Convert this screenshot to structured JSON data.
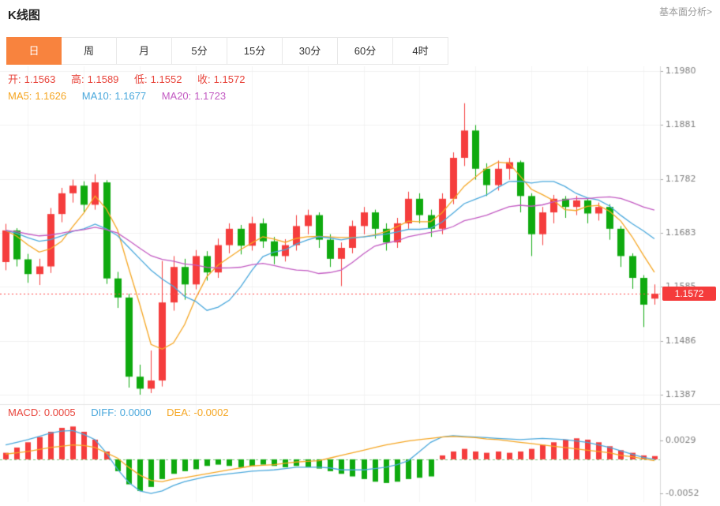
{
  "header": {
    "title": "K线图",
    "link": "基本面分析>"
  },
  "tabs": {
    "items": [
      {
        "key": "day",
        "label": "日",
        "active": true
      },
      {
        "key": "week",
        "label": "周",
        "active": false
      },
      {
        "key": "month",
        "label": "月",
        "active": false
      },
      {
        "key": "min5",
        "label": "5分",
        "active": false
      },
      {
        "key": "min15",
        "label": "15分",
        "active": false
      },
      {
        "key": "min30",
        "label": "30分",
        "active": false
      },
      {
        "key": "min60",
        "label": "60分",
        "active": false
      },
      {
        "key": "hour4",
        "label": "4时",
        "active": false
      }
    ]
  },
  "ohlc": {
    "open_label": "开:",
    "open": "1.1563",
    "high_label": "高:",
    "high": "1.1589",
    "low_label": "低:",
    "low": "1.1552",
    "close_label": "收:",
    "close": "1.1572"
  },
  "ma": {
    "ma5_label": "MA5:",
    "ma5": "1.1626",
    "ma10_label": "MA10:",
    "ma10": "1.1677",
    "ma20_label": "MA20:",
    "ma20": "1.1723"
  },
  "macd_legend": {
    "macd_label": "MACD:",
    "macd": "0.0005",
    "diff_label": "DIFF:",
    "diff": "0.0000",
    "dea_label": "DEA:",
    "dea": "-0.0002"
  },
  "price_tag": "1.1572",
  "colors": {
    "up": "#f53d3d",
    "down": "#0faa0f",
    "ma5": "#f5a623",
    "ma10": "#4aa8dc",
    "ma20": "#c25ac2",
    "diff": "#4aa8dc",
    "dea": "#f5a623",
    "accent_tab": "#f8833e",
    "price_line": "#ff4a4a",
    "macd_zero": "#7cc47c"
  },
  "chart_data": {
    "type": "candlestick",
    "title": "K线图",
    "y_ticks": [
      "1.1980",
      "1.1881",
      "1.1782",
      "1.1683",
      "1.1585",
      "1.1486",
      "1.1387"
    ],
    "y_range": [
      1.1387,
      1.198
    ],
    "current_price": 1.1572,
    "ma_periods": [
      5,
      10,
      20
    ],
    "candles": [
      [
        1.163,
        1.1688,
        1.1615,
        1.17
      ],
      [
        1.1688,
        1.1635,
        1.1622,
        1.1692
      ],
      [
        1.1635,
        1.1608,
        1.1592,
        1.1645
      ],
      [
        1.1608,
        1.1622,
        1.1588,
        1.1636
      ],
      [
        1.1622,
        1.1718,
        1.161,
        1.1729
      ],
      [
        1.1718,
        1.1756,
        1.1703,
        1.1766
      ],
      [
        1.1756,
        1.177,
        1.1739,
        1.1781
      ],
      [
        1.177,
        1.1735,
        1.1721,
        1.1778
      ],
      [
        1.1735,
        1.1776,
        1.1726,
        1.1791
      ],
      [
        1.1776,
        1.16,
        1.159,
        1.178
      ],
      [
        1.16,
        1.1565,
        1.1546,
        1.1612
      ],
      [
        1.1565,
        1.142,
        1.14,
        1.1572
      ],
      [
        1.142,
        1.1398,
        1.1387,
        1.1442
      ],
      [
        1.1398,
        1.1413,
        1.139,
        1.1468
      ],
      [
        1.1413,
        1.1556,
        1.1402,
        1.1632
      ],
      [
        1.1556,
        1.1621,
        1.1541,
        1.1641
      ],
      [
        1.1621,
        1.1589,
        1.1561,
        1.1636
      ],
      [
        1.1589,
        1.1641,
        1.158,
        1.1652
      ],
      [
        1.1641,
        1.1611,
        1.1596,
        1.165
      ],
      [
        1.1611,
        1.1661,
        1.1601,
        1.1673
      ],
      [
        1.1661,
        1.1691,
        1.1646,
        1.1701
      ],
      [
        1.1691,
        1.166,
        1.1644,
        1.1698
      ],
      [
        1.166,
        1.1701,
        1.1651,
        1.1713
      ],
      [
        1.1701,
        1.1668,
        1.1656,
        1.171
      ],
      [
        1.1668,
        1.1641,
        1.1626,
        1.1676
      ],
      [
        1.1641,
        1.1661,
        1.1631,
        1.1672
      ],
      [
        1.1661,
        1.1696,
        1.1651,
        1.1716
      ],
      [
        1.1696,
        1.1716,
        1.1681,
        1.1726
      ],
      [
        1.1716,
        1.1671,
        1.1656,
        1.1721
      ],
      [
        1.1671,
        1.1636,
        1.1621,
        1.1681
      ],
      [
        1.1636,
        1.1656,
        1.1586,
        1.1666
      ],
      [
        1.1656,
        1.1696,
        1.1646,
        1.1706
      ],
      [
        1.1696,
        1.1721,
        1.1681,
        1.1731
      ],
      [
        1.1721,
        1.1691,
        1.1673,
        1.1726
      ],
      [
        1.1691,
        1.1666,
        1.1651,
        1.1701
      ],
      [
        1.1666,
        1.1701,
        1.1656,
        1.1711
      ],
      [
        1.1701,
        1.1746,
        1.1691,
        1.1759
      ],
      [
        1.1746,
        1.1716,
        1.1701,
        1.1756
      ],
      [
        1.1716,
        1.1691,
        1.1676,
        1.1726
      ],
      [
        1.1691,
        1.1746,
        1.1681,
        1.1756
      ],
      [
        1.1746,
        1.1821,
        1.1736,
        1.1831
      ],
      [
        1.1821,
        1.1871,
        1.1806,
        1.1921
      ],
      [
        1.1871,
        1.1801,
        1.1781,
        1.1881
      ],
      [
        1.1801,
        1.1771,
        1.1751,
        1.1811
      ],
      [
        1.1771,
        1.1801,
        1.1761,
        1.1816
      ],
      [
        1.1801,
        1.1813,
        1.1781,
        1.1821
      ],
      [
        1.1813,
        1.1751,
        1.1721,
        1.1816
      ],
      [
        1.1751,
        1.1681,
        1.1641,
        1.1756
      ],
      [
        1.1681,
        1.1721,
        1.1661,
        1.1731
      ],
      [
        1.1721,
        1.1746,
        1.1701,
        1.1753
      ],
      [
        1.1746,
        1.1731,
        1.1711,
        1.1751
      ],
      [
        1.1731,
        1.1743,
        1.1716,
        1.1751
      ],
      [
        1.1743,
        1.1719,
        1.1701,
        1.1746
      ],
      [
        1.1719,
        1.1731,
        1.1706,
        1.1739
      ],
      [
        1.1731,
        1.1691,
        1.1671,
        1.1736
      ],
      [
        1.1691,
        1.1641,
        1.1621,
        1.1696
      ],
      [
        1.1641,
        1.1601,
        1.1581,
        1.1646
      ],
      [
        1.1601,
        1.1552,
        1.1511,
        1.1606
      ],
      [
        1.1563,
        1.1572,
        1.1552,
        1.1589
      ]
    ],
    "macd_ticks": [
      "0.0029",
      "-0.0052"
    ],
    "macd_range": [
      -0.0065,
      0.006
    ],
    "macd": {
      "bars": [
        0.001,
        0.0018,
        0.0026,
        0.0034,
        0.0042,
        0.0048,
        0.005,
        0.0042,
        0.003,
        0.0012,
        -0.0018,
        -0.0038,
        -0.0048,
        -0.0042,
        -0.003,
        -0.0022,
        -0.0018,
        -0.0015,
        -0.001,
        -0.0008,
        -0.001,
        -0.0012,
        -0.001,
        -0.0008,
        -0.001,
        -0.0012,
        -0.001,
        -0.0012,
        -0.0014,
        -0.0018,
        -0.0022,
        -0.0026,
        -0.003,
        -0.0034,
        -0.0036,
        -0.0034,
        -0.003,
        -0.0028,
        -0.0026,
        0.0006,
        0.0012,
        0.0016,
        0.0012,
        0.001,
        0.0012,
        0.001,
        0.0012,
        0.0016,
        0.0022,
        0.0026,
        0.003,
        0.0032,
        0.003,
        0.0026,
        0.002,
        0.0014,
        0.001,
        0.0006,
        0.0005
      ],
      "diff": [
        0.0022,
        0.0026,
        0.003,
        0.0035,
        0.004,
        0.0043,
        0.0044,
        0.0038,
        0.003,
        0.001,
        -0.0015,
        -0.0035,
        -0.0048,
        -0.0052,
        -0.0048,
        -0.004,
        -0.0034,
        -0.003,
        -0.0026,
        -0.0024,
        -0.0022,
        -0.002,
        -0.0018,
        -0.0017,
        -0.0016,
        -0.0014,
        -0.0012,
        -0.0012,
        -0.0012,
        -0.0013,
        -0.0016,
        -0.0016,
        -0.0016,
        -0.0014,
        -0.0012,
        -0.0008,
        -0.0002,
        0.0012,
        0.0026,
        0.0034,
        0.0036,
        0.0035,
        0.0034,
        0.0033,
        0.0032,
        0.0031,
        0.003,
        0.0031,
        0.0032,
        0.0031,
        0.003,
        0.0028,
        0.0026,
        0.0022,
        0.0018,
        0.0013,
        0.0008,
        0.0003,
        0.0
      ],
      "dea": [
        0.0008,
        0.001,
        0.0012,
        0.0015,
        0.0018,
        0.002,
        0.0022,
        0.0021,
        0.0018,
        0.001,
        0.0002,
        -0.0012,
        -0.0024,
        -0.0032,
        -0.0034,
        -0.003,
        -0.0028,
        -0.0025,
        -0.0022,
        -0.0019,
        -0.0016,
        -0.0013,
        -0.001,
        -0.0009,
        -0.0008,
        -0.0006,
        -0.0004,
        -0.0003,
        -0.0002,
        0.0002,
        0.0006,
        0.001,
        0.0014,
        0.0018,
        0.0022,
        0.0025,
        0.0028,
        0.003,
        0.0032,
        0.0034,
        0.0035,
        0.0034,
        0.0033,
        0.0031,
        0.003,
        0.0028,
        0.0026,
        0.0024,
        0.0022,
        0.002,
        0.0018,
        0.0016,
        0.0014,
        0.0012,
        0.001,
        0.0006,
        0.0004,
        0.0001,
        -0.0002
      ]
    }
  }
}
